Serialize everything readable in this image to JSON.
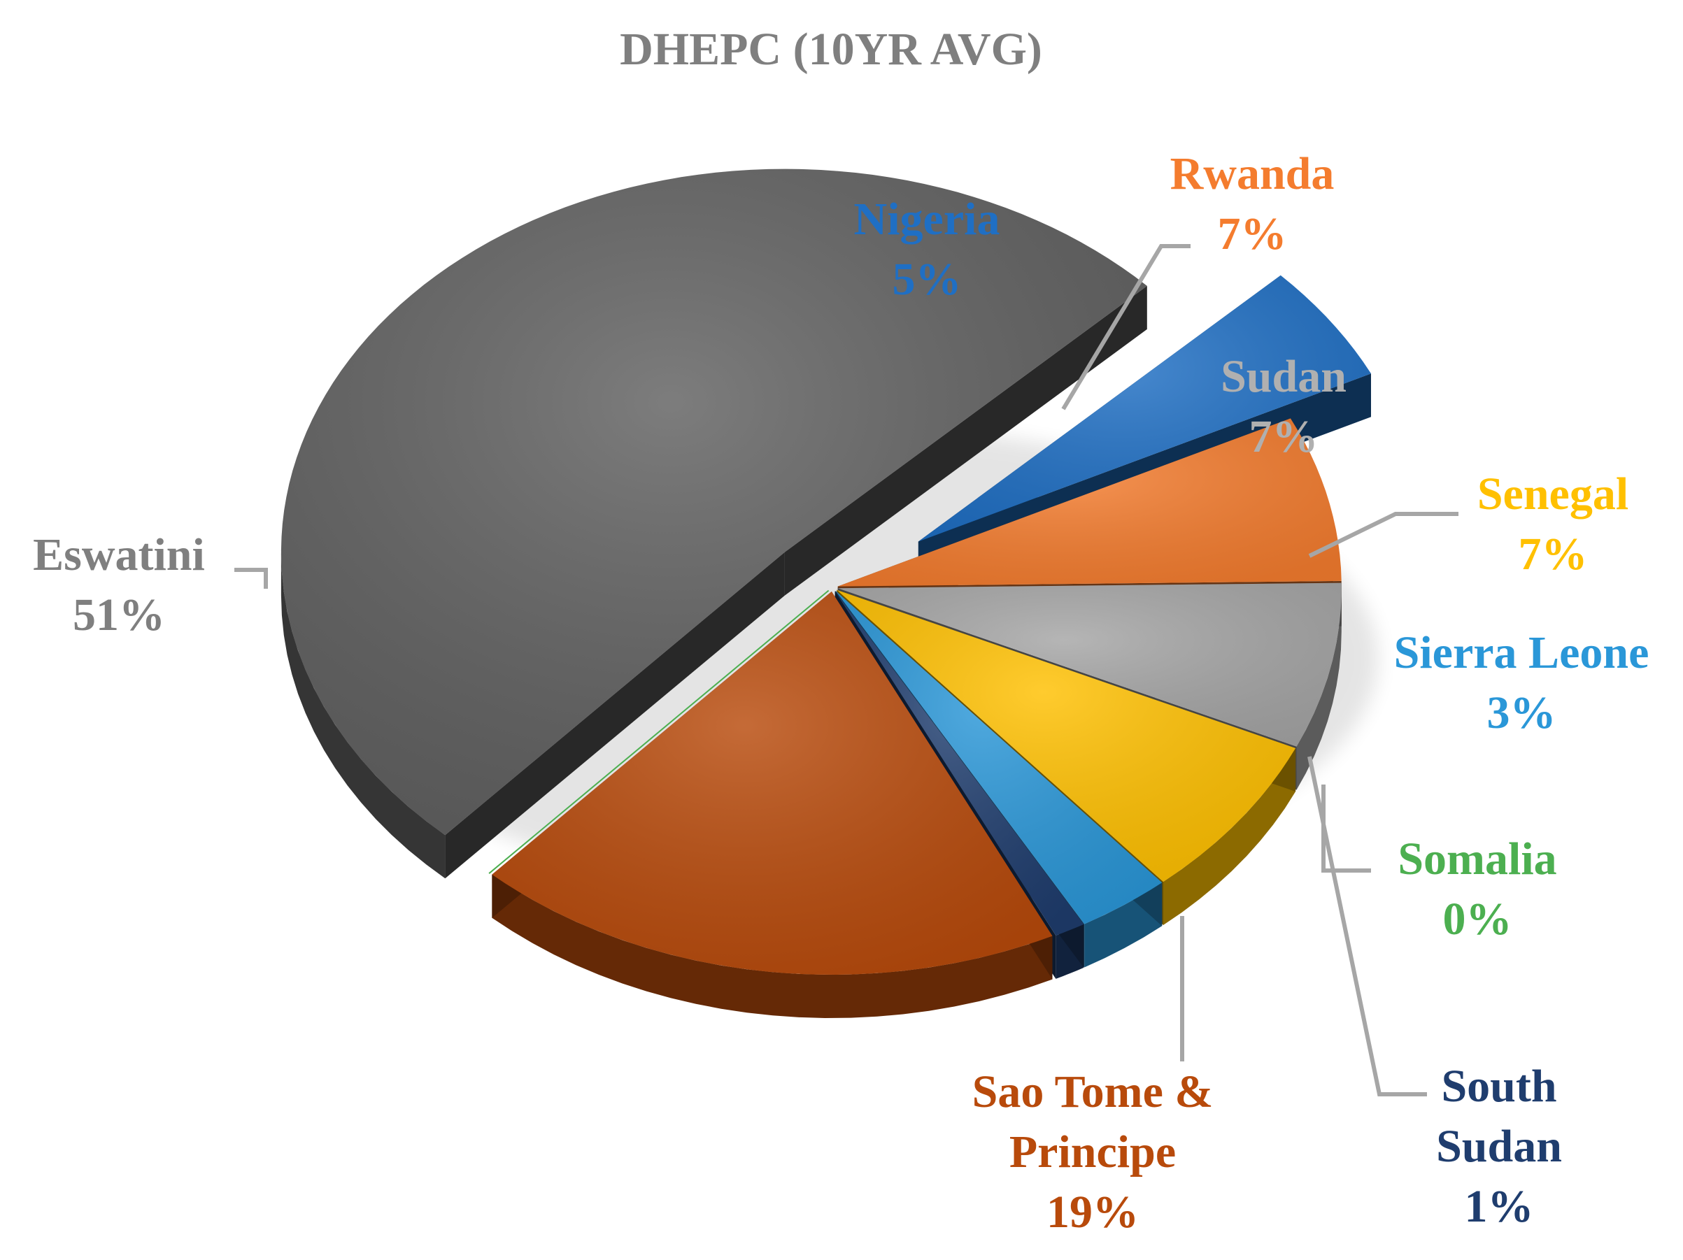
{
  "chart_data": {
    "type": "pie",
    "title": "DHEPC (10YR AVG)",
    "style": "3d-exploded",
    "legend": "none",
    "series": [
      {
        "name": "",
        "categories": [
          "Nigeria",
          "Rwanda",
          "Sudan",
          "Senegal",
          "Sierra Leone",
          "South Sudan",
          "Sao Tome & Principe",
          "Somalia",
          "Eswatini"
        ],
        "values": [
          5,
          7,
          7,
          7,
          3,
          1,
          19,
          0,
          51
        ]
      }
    ],
    "slices": [
      {
        "name": "Nigeria",
        "lines": [
          "Nigeria"
        ],
        "value": 5,
        "label": "5%",
        "color": "#1f6fc4",
        "label_color": "#1f6fc4"
      },
      {
        "name": "Rwanda",
        "lines": [
          "Rwanda"
        ],
        "value": 7,
        "label": "7%",
        "color": "#f47c2e",
        "label_color": "#f47c2e"
      },
      {
        "name": "Sudan",
        "lines": [
          "Sudan"
        ],
        "value": 7,
        "label": "7%",
        "color": "#a5a5a5",
        "label_color": "#b0b0b0"
      },
      {
        "name": "Senegal",
        "lines": [
          "Senegal"
        ],
        "value": 7,
        "label": "7%",
        "color": "#ffc000",
        "label_color": "#ffc000"
      },
      {
        "name": "Sierra Leone",
        "lines": [
          "Sierra Leone"
        ],
        "value": 3,
        "label": "3%",
        "color": "#2a97d8",
        "label_color": "#2a97d8"
      },
      {
        "name": "South Sudan",
        "lines": [
          "South",
          "Sudan"
        ],
        "value": 1,
        "label": "1%",
        "color": "#1f3d6e",
        "label_color": "#1f3d6e"
      },
      {
        "name": "Sao Tome & Principe",
        "lines": [
          "Sao Tome &",
          "Principe"
        ],
        "value": 19,
        "label": "19%",
        "color": "#b84a0b",
        "label_color": "#b84a0b"
      },
      {
        "name": "Somalia",
        "lines": [
          "Somalia"
        ],
        "value": 0,
        "label": "0%",
        "color": "#4caf50",
        "label_color": "#4caf50"
      },
      {
        "name": "Eswatini",
        "lines": [
          "Eswatini"
        ],
        "value": 51,
        "label": "51%",
        "color": "#606060",
        "label_color": "#7f7f7f"
      }
    ]
  }
}
